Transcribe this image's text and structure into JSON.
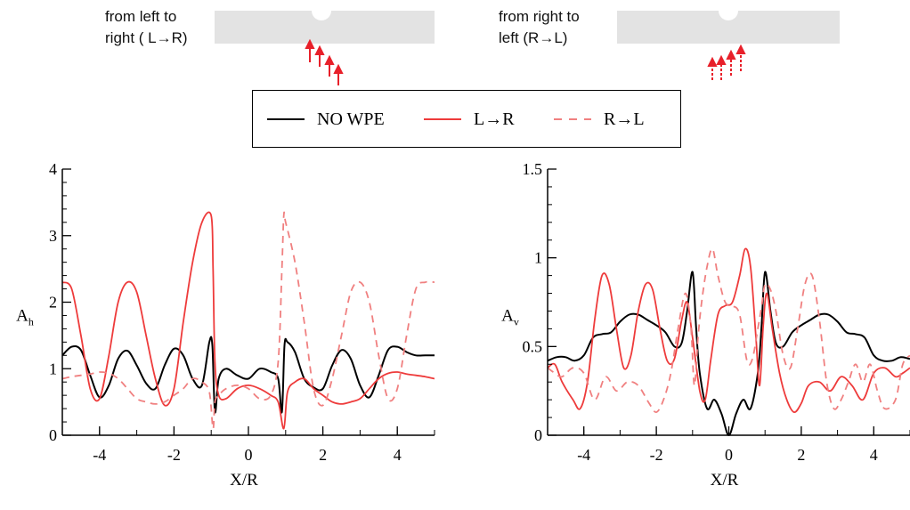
{
  "header": {
    "left_caption": [
      "from left to",
      "right ( L→R)"
    ],
    "right_caption": [
      "from right to",
      "left  (R→L)"
    ]
  },
  "colors": {
    "no_wpe": "#000000",
    "l_to_r": "#ee3b3b",
    "r_to_l": "#f08080",
    "plate": "#e3e3e3"
  },
  "legend": {
    "entries": [
      {
        "label": "NO WPE",
        "style": "solid",
        "color": "#000000"
      },
      {
        "label": "L→R",
        "style": "solid",
        "color": "#ee3b3b"
      },
      {
        "label": "R→L",
        "style": "dashed",
        "color": "#f08080"
      }
    ]
  },
  "chart_data": [
    {
      "type": "line",
      "title": "",
      "xlabel": "X/R",
      "ylabel": "A",
      "ylabel_subscript": "h",
      "xlim": [
        -5,
        5
      ],
      "ylim": [
        0,
        4
      ],
      "xticks": [
        -4,
        -2,
        0,
        2,
        4
      ],
      "yticks": [
        0,
        1,
        2,
        3,
        4
      ],
      "yticklabels": [
        "0",
        "1",
        "2",
        "3",
        "4"
      ],
      "grid": false,
      "series": [
        {
          "name": "NO WPE",
          "style": "solid",
          "x": [
            -5,
            -4.75,
            -4.5,
            -4.25,
            -4,
            -3.75,
            -3.5,
            -3.25,
            -3,
            -2.75,
            -2.5,
            -2.25,
            -2,
            -1.75,
            -1.5,
            -1.25,
            -1.05,
            -0.97,
            -0.9,
            -0.8,
            -0.6,
            -0.3,
            0,
            0.3,
            0.6,
            0.8,
            0.9,
            0.97,
            1.05,
            1.25,
            1.5,
            1.75,
            2,
            2.25,
            2.5,
            2.75,
            3,
            3.25,
            3.5,
            3.75,
            4,
            4.25,
            4.5,
            4.75,
            5
          ],
          "y": [
            1.2,
            1.33,
            1.28,
            0.9,
            0.57,
            0.75,
            1.15,
            1.27,
            1.05,
            0.78,
            0.7,
            1.05,
            1.3,
            1.2,
            0.85,
            0.75,
            1.4,
            1.35,
            0.35,
            0.85,
            1.0,
            0.9,
            0.85,
            1.0,
            0.95,
            0.85,
            0.35,
            1.35,
            1.4,
            1.25,
            0.85,
            0.72,
            0.7,
            1.05,
            1.28,
            1.15,
            0.75,
            0.57,
            0.9,
            1.28,
            1.33,
            1.25,
            1.2,
            1.2,
            1.2
          ]
        },
        {
          "name": "L→R",
          "style": "solid",
          "x": [
            -5,
            -4.75,
            -4.5,
            -4.25,
            -4,
            -3.75,
            -3.5,
            -3.25,
            -3,
            -2.75,
            -2.5,
            -2.25,
            -2,
            -1.75,
            -1.5,
            -1.25,
            -1.0,
            -0.95,
            -0.9,
            -0.8,
            -0.6,
            -0.3,
            0,
            0.3,
            0.6,
            0.8,
            0.95,
            1.05,
            1.25,
            1.5,
            1.75,
            2,
            2.25,
            2.5,
            2.75,
            3,
            3.25,
            3.5,
            3.75,
            4,
            4.25,
            4.5,
            4.75,
            5
          ],
          "y": [
            2.3,
            2.2,
            1.5,
            0.7,
            0.55,
            1.2,
            2.0,
            2.3,
            2.15,
            1.5,
            0.85,
            0.45,
            0.7,
            1.7,
            2.6,
            3.2,
            3.3,
            2.5,
            1.1,
            0.6,
            0.55,
            0.7,
            0.75,
            0.7,
            0.6,
            0.5,
            0.1,
            0.65,
            0.8,
            0.85,
            0.7,
            0.6,
            0.5,
            0.47,
            0.5,
            0.55,
            0.7,
            0.85,
            0.93,
            0.95,
            0.92,
            0.9,
            0.88,
            0.85
          ]
        },
        {
          "name": "R→L",
          "style": "dashed",
          "x": [
            -5,
            -4.75,
            -4.5,
            -4.25,
            -4,
            -3.75,
            -3.5,
            -3.25,
            -3,
            -2.75,
            -2.5,
            -2.25,
            -2,
            -1.75,
            -1.5,
            -1.25,
            -1.05,
            -0.95,
            -0.9,
            -0.8,
            -0.6,
            -0.3,
            0,
            0.3,
            0.6,
            0.8,
            0.9,
            0.95,
            1.0,
            1.25,
            1.5,
            1.75,
            2,
            2.25,
            2.5,
            2.75,
            3,
            3.25,
            3.5,
            3.75,
            4,
            4.25,
            4.5,
            4.75,
            5
          ],
          "y": [
            0.85,
            0.88,
            0.9,
            0.92,
            0.95,
            0.93,
            0.85,
            0.7,
            0.55,
            0.5,
            0.47,
            0.5,
            0.6,
            0.7,
            0.85,
            0.8,
            0.65,
            0.1,
            0.5,
            0.6,
            0.7,
            0.75,
            0.7,
            0.55,
            0.6,
            1.1,
            2.5,
            3.3,
            3.2,
            2.6,
            1.7,
            0.7,
            0.45,
            0.85,
            1.5,
            2.15,
            2.3,
            2.0,
            1.2,
            0.55,
            0.7,
            1.5,
            2.2,
            2.3,
            2.3
          ]
        }
      ]
    },
    {
      "type": "line",
      "title": "",
      "xlabel": "X/R",
      "ylabel": "A",
      "ylabel_subscript": "v",
      "xlim": [
        -5,
        5
      ],
      "ylim": [
        0,
        1.5
      ],
      "xticks": [
        -4,
        -2,
        0,
        2,
        4
      ],
      "yticks": [
        0,
        0.5,
        1,
        1.5
      ],
      "yticklabels": [
        "0",
        "0.5",
        "1",
        "1.5"
      ],
      "grid": false,
      "series": [
        {
          "name": "NO WPE",
          "style": "solid",
          "x": [
            -5,
            -4.75,
            -4.5,
            -4.25,
            -4,
            -3.75,
            -3.5,
            -3.25,
            -3,
            -2.75,
            -2.5,
            -2.25,
            -2,
            -1.75,
            -1.5,
            -1.3,
            -1.15,
            -1.0,
            -0.9,
            -0.8,
            -0.6,
            -0.4,
            -0.2,
            0,
            0.2,
            0.4,
            0.6,
            0.8,
            0.9,
            1.0,
            1.15,
            1.3,
            1.5,
            1.75,
            2,
            2.25,
            2.5,
            2.75,
            3,
            3.25,
            3.5,
            3.75,
            4,
            4.25,
            4.5,
            4.75,
            5
          ],
          "y": [
            0.42,
            0.44,
            0.44,
            0.42,
            0.45,
            0.55,
            0.57,
            0.58,
            0.64,
            0.68,
            0.68,
            0.65,
            0.62,
            0.58,
            0.5,
            0.52,
            0.7,
            0.92,
            0.6,
            0.35,
            0.15,
            0.2,
            0.12,
            0.0,
            0.12,
            0.2,
            0.15,
            0.35,
            0.6,
            0.92,
            0.7,
            0.52,
            0.5,
            0.58,
            0.62,
            0.65,
            0.68,
            0.68,
            0.64,
            0.58,
            0.57,
            0.55,
            0.45,
            0.42,
            0.42,
            0.44,
            0.43
          ]
        },
        {
          "name": "L→R",
          "style": "solid",
          "x": [
            -5,
            -4.8,
            -4.6,
            -4.3,
            -4.1,
            -3.9,
            -3.7,
            -3.5,
            -3.3,
            -3.1,
            -2.9,
            -2.7,
            -2.5,
            -2.3,
            -2.1,
            -1.9,
            -1.7,
            -1.5,
            -1.3,
            -1.15,
            -1.0,
            -0.8,
            -0.65,
            -0.5,
            -0.3,
            -0.1,
            0.1,
            0.3,
            0.45,
            0.6,
            0.75,
            0.85,
            0.95,
            1.05,
            1.2,
            1.4,
            1.6,
            1.8,
            2.0,
            2.2,
            2.5,
            2.8,
            3.1,
            3.4,
            3.7,
            4.0,
            4.3,
            4.6,
            4.8,
            5
          ],
          "y": [
            0.38,
            0.4,
            0.3,
            0.2,
            0.15,
            0.3,
            0.65,
            0.9,
            0.85,
            0.6,
            0.38,
            0.45,
            0.7,
            0.85,
            0.82,
            0.6,
            0.42,
            0.43,
            0.65,
            0.75,
            0.55,
            0.25,
            0.2,
            0.42,
            0.68,
            0.73,
            0.75,
            0.9,
            1.05,
            0.95,
            0.55,
            0.28,
            0.62,
            0.8,
            0.6,
            0.35,
            0.2,
            0.13,
            0.18,
            0.28,
            0.3,
            0.25,
            0.33,
            0.28,
            0.2,
            0.35,
            0.38,
            0.33,
            0.35,
            0.38
          ]
        },
        {
          "name": "R→L",
          "style": "dashed",
          "x": [
            -5,
            -4.8,
            -4.6,
            -4.3,
            -4.0,
            -3.7,
            -3.4,
            -3.1,
            -2.8,
            -2.5,
            -2.2,
            -2.0,
            -1.8,
            -1.6,
            -1.4,
            -1.2,
            -1.05,
            -0.95,
            -0.85,
            -0.75,
            -0.6,
            -0.45,
            -0.3,
            -0.1,
            0.1,
            0.3,
            0.5,
            0.65,
            0.8,
            0.9,
            1.0,
            1.15,
            1.3,
            1.5,
            1.7,
            1.9,
            2.1,
            2.3,
            2.5,
            2.7,
            2.9,
            3.1,
            3.3,
            3.5,
            3.7,
            3.9,
            4.1,
            4.3,
            4.6,
            4.8,
            5
          ],
          "y": [
            0.38,
            0.35,
            0.33,
            0.38,
            0.35,
            0.2,
            0.33,
            0.25,
            0.3,
            0.28,
            0.18,
            0.13,
            0.2,
            0.35,
            0.6,
            0.8,
            0.62,
            0.28,
            0.55,
            0.75,
            0.95,
            1.05,
            0.9,
            0.75,
            0.73,
            0.68,
            0.42,
            0.43,
            0.6,
            0.72,
            0.85,
            0.82,
            0.7,
            0.45,
            0.38,
            0.6,
            0.85,
            0.9,
            0.65,
            0.3,
            0.15,
            0.2,
            0.3,
            0.4,
            0.3,
            0.4,
            0.25,
            0.15,
            0.2,
            0.4,
            0.45
          ]
        }
      ]
    }
  ]
}
